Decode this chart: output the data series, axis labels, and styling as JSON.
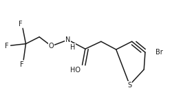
{
  "background_color": "#ffffff",
  "line_color": "#1a1a1a",
  "line_width": 1.1,
  "font_size": 7.0,
  "xlim": [
    -0.08,
    1.05
  ],
  "ylim": [
    0.1,
    0.95
  ]
}
